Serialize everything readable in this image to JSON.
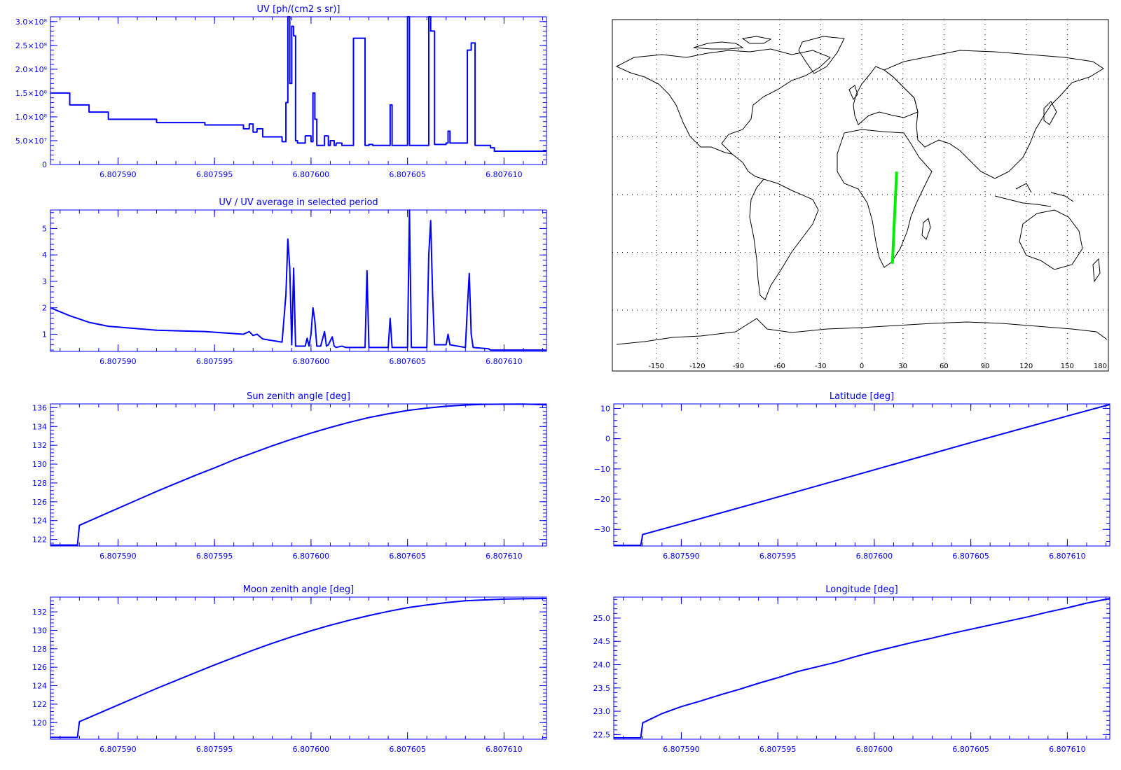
{
  "colors": {
    "plot": "#0000ff",
    "track": "#00ee00",
    "map_lines": "#000000"
  },
  "chart_data": [
    {
      "id": "uv",
      "type": "line",
      "title": "UV [ph/(cm2 s sr)]",
      "xlabel": "",
      "ylabel": "",
      "xlim": [
        6.8075865,
        6.8076122
      ],
      "ylim": [
        0,
        310000000
      ],
      "step": true,
      "x_tick_labels": [
        "6.807590",
        "6.807595",
        "6.807600",
        "6.807605",
        "6.807610"
      ],
      "x_ticks": [
        6.80759,
        6.807595,
        6.8076,
        6.807605,
        6.80761
      ],
      "y_tick_labels": [
        "0",
        "5.0×10⁷",
        "1.0×10⁸",
        "1.5×10⁸",
        "2.0×10⁸",
        "2.5×10⁸",
        "3.0×10⁸"
      ],
      "y_ticks": [
        0,
        50000000,
        100000000,
        150000000,
        200000000,
        250000000,
        300000000
      ],
      "series": [
        {
          "x": [
            6.8075865,
            6.8075875,
            6.8075885,
            6.8075895,
            6.807592,
            6.8075945,
            6.8075965,
            6.8075968,
            6.807597,
            6.8075972,
            6.8075975,
            6.8075985,
            6.8075987,
            6.8075988,
            6.8075989,
            6.807599,
            6.8075991,
            6.8075992,
            6.8075993,
            6.8075994,
            6.8075997,
            6.8076,
            6.8076001,
            6.8076002,
            6.8076003,
            6.8076005,
            6.8076007,
            6.8076009,
            6.807601,
            6.8076012,
            6.8076013,
            6.8076016,
            6.8076018,
            6.807602,
            6.8076022,
            6.8076028,
            6.807603,
            6.8076032,
            6.8076041,
            6.8076042,
            6.8076044,
            6.807605,
            6.8076051,
            6.8076052,
            6.8076061,
            6.8076062,
            6.8076064,
            6.807607,
            6.8076071,
            6.8076072,
            6.8076073,
            6.807608,
            6.8076081,
            6.8076083,
            6.8076085,
            6.8076092,
            6.8076093,
            6.8076095,
            6.8076122
          ],
          "y": [
            150000000,
            125000000,
            110000000,
            95000000,
            88000000,
            83000000,
            75000000,
            85000000,
            68000000,
            75000000,
            58000000,
            48000000,
            130000000,
            310000000,
            170000000,
            290000000,
            270000000,
            50000000,
            45000000,
            45000000,
            60000000,
            48000000,
            150000000,
            95000000,
            40000000,
            40000000,
            60000000,
            40000000,
            50000000,
            40000000,
            45000000,
            40000000,
            40000000,
            40000000,
            265000000,
            40000000,
            42000000,
            40000000,
            125000000,
            40000000,
            40000000,
            310000000,
            40000000,
            40000000,
            310000000,
            280000000,
            42000000,
            45000000,
            70000000,
            45000000,
            45000000,
            45000000,
            240000000,
            255000000,
            40000000,
            40000000,
            35000000,
            28000000,
            28000000
          ]
        }
      ]
    },
    {
      "id": "uv-ratio",
      "type": "line",
      "title": "UV / UV average in selected period",
      "xlabel": "",
      "ylabel": "",
      "xlim": [
        6.8075865,
        6.8076122
      ],
      "ylim": [
        0.35,
        5.7
      ],
      "x_tick_labels": [
        "6.807590",
        "6.807595",
        "6.807600",
        "6.807605",
        "6.807610"
      ],
      "x_ticks": [
        6.80759,
        6.807595,
        6.8076,
        6.807605,
        6.80761
      ],
      "y_tick_labels": [
        "1",
        "2",
        "3",
        "4",
        "5"
      ],
      "y_ticks": [
        1,
        2,
        3,
        4,
        5
      ],
      "series": [
        {
          "x": [
            6.8075865,
            6.8075875,
            6.8075885,
            6.8075895,
            6.807592,
            6.8075945,
            6.8075965,
            6.8075968,
            6.807597,
            6.8075972,
            6.8075975,
            6.8075985,
            6.8075987,
            6.8075988,
            6.8075989,
            6.807599,
            6.8075991,
            6.8075992,
            6.8075993,
            6.8075997,
            6.8075998,
            6.8075999,
            6.8076,
            6.8076001,
            6.8076002,
            6.8076003,
            6.8076005,
            6.8076007,
            6.8076008,
            6.8076009,
            6.8076011,
            6.8076012,
            6.8076013,
            6.8076016,
            6.8076018,
            6.807602,
            6.8076028,
            6.8076029,
            6.807603,
            6.8076032,
            6.807604,
            6.8076041,
            6.8076042,
            6.807605,
            6.8076051,
            6.8076052,
            6.807606,
            6.8076061,
            6.8076062,
            6.8076063,
            6.8076064,
            6.807607,
            6.8076071,
            6.8076072,
            6.807608,
            6.8076081,
            6.8076082,
            6.8076083,
            6.8076084,
            6.8076092,
            6.8076093,
            6.8076094,
            6.8076122
          ],
          "y": [
            2.0,
            1.7,
            1.45,
            1.3,
            1.15,
            1.1,
            1.0,
            1.1,
            0.95,
            1.0,
            0.82,
            0.7,
            2.5,
            4.6,
            3.5,
            0.6,
            3.5,
            0.55,
            0.55,
            0.55,
            0.85,
            0.55,
            1.0,
            2.0,
            1.5,
            0.55,
            0.55,
            1.1,
            0.55,
            0.6,
            0.9,
            0.55,
            0.5,
            0.55,
            0.5,
            0.5,
            0.5,
            3.4,
            0.5,
            0.5,
            0.5,
            1.6,
            0.5,
            0.5,
            5.7,
            0.5,
            0.5,
            4.0,
            5.3,
            2.5,
            0.6,
            0.6,
            1.0,
            0.6,
            0.5,
            2.0,
            3.3,
            1.0,
            0.5,
            0.45,
            0.4,
            0.4,
            0.4
          ]
        }
      ]
    },
    {
      "id": "sun-zenith",
      "type": "line",
      "title": "Sun zenith angle [deg]",
      "xlabel": "",
      "ylabel": "",
      "xlim": [
        6.8075865,
        6.8076122
      ],
      "ylim": [
        121.3,
        136.4
      ],
      "x_tick_labels": [
        "6.807590",
        "6.807595",
        "6.807600",
        "6.807605",
        "6.807610"
      ],
      "x_ticks": [
        6.80759,
        6.807595,
        6.8076,
        6.807605,
        6.80761
      ],
      "y_tick_labels": [
        "122",
        "124",
        "126",
        "128",
        "130",
        "132",
        "134",
        "136"
      ],
      "y_ticks": [
        122,
        124,
        126,
        128,
        130,
        132,
        134,
        136
      ],
      "series": [
        {
          "x": [
            6.8075865,
            6.8075879,
            6.807588,
            6.807589,
            6.80759,
            6.807591,
            6.807592,
            6.807593,
            6.807594,
            6.807595,
            6.807596,
            6.807597,
            6.807598,
            6.807599,
            6.8076,
            6.807601,
            6.807602,
            6.807603,
            6.807604,
            6.807605,
            6.807606,
            6.807607,
            6.807608,
            6.807609,
            6.80761,
            6.807611,
            6.8076122
          ],
          "y": [
            121.4,
            121.4,
            123.5,
            124.4,
            125.3,
            126.2,
            127.1,
            127.95,
            128.8,
            129.6,
            130.45,
            131.2,
            131.95,
            132.65,
            133.3,
            133.9,
            134.45,
            134.95,
            135.35,
            135.7,
            135.95,
            136.15,
            136.28,
            136.35,
            136.37,
            136.38,
            136.3
          ]
        }
      ]
    },
    {
      "id": "latitude",
      "type": "line",
      "title": "Latitude [deg]",
      "xlabel": "",
      "ylabel": "",
      "xlim": [
        6.8075865,
        6.8076122
      ],
      "ylim": [
        -35.5,
        11.5
      ],
      "x_tick_labels": [
        "6.807590",
        "6.807595",
        "6.807600",
        "6.807605",
        "6.807610"
      ],
      "x_ticks": [
        6.80759,
        6.807595,
        6.8076,
        6.807605,
        6.80761
      ],
      "y_tick_labels": [
        "−30",
        "−20",
        "−10",
        "0",
        "10"
      ],
      "y_ticks": [
        -30,
        -20,
        -10,
        0,
        10
      ],
      "series": [
        {
          "x": [
            6.8075865,
            6.8075879,
            6.807588,
            6.80759,
            6.807595,
            6.8076,
            6.807605,
            6.80761,
            6.8076122
          ],
          "y": [
            -35.3,
            -35.3,
            -31.7,
            -28.2,
            -19.3,
            -10.3,
            -1.3,
            7.5,
            11.3
          ]
        }
      ]
    },
    {
      "id": "moon-zenith",
      "type": "line",
      "title": "Moon zenith angle [deg]",
      "xlabel": "",
      "ylabel": "",
      "xlim": [
        6.8075865,
        6.8076122
      ],
      "ylim": [
        118.2,
        133.6
      ],
      "x_tick_labels": [
        "6.807590",
        "6.807595",
        "6.807600",
        "6.807605",
        "6.807610"
      ],
      "x_ticks": [
        6.80759,
        6.807595,
        6.8076,
        6.807605,
        6.80761
      ],
      "y_tick_labels": [
        "120",
        "122",
        "124",
        "126",
        "128",
        "130",
        "132"
      ],
      "y_ticks": [
        120,
        122,
        124,
        126,
        128,
        130,
        132
      ],
      "series": [
        {
          "x": [
            6.8075865,
            6.8075879,
            6.807588,
            6.807589,
            6.80759,
            6.807591,
            6.807592,
            6.807593,
            6.807594,
            6.807595,
            6.807596,
            6.807597,
            6.807598,
            6.807599,
            6.8076,
            6.807601,
            6.807602,
            6.807603,
            6.807604,
            6.807605,
            6.807606,
            6.807607,
            6.807608,
            6.807609,
            6.80761,
            6.807611,
            6.8076122
          ],
          "y": [
            118.4,
            118.4,
            120.1,
            121.0,
            121.9,
            122.8,
            123.7,
            124.55,
            125.4,
            126.25,
            127.05,
            127.85,
            128.6,
            129.3,
            129.95,
            130.55,
            131.1,
            131.6,
            132.05,
            132.45,
            132.75,
            133.0,
            133.2,
            133.3,
            133.38,
            133.42,
            133.45
          ]
        }
      ]
    },
    {
      "id": "longitude",
      "type": "line",
      "title": "Longitude [deg]",
      "xlabel": "",
      "ylabel": "",
      "xlim": [
        6.8075865,
        6.8076122
      ],
      "ylim": [
        22.4,
        25.45
      ],
      "x_tick_labels": [
        "6.807590",
        "6.807595",
        "6.807600",
        "6.807605",
        "6.807610"
      ],
      "x_ticks": [
        6.80759,
        6.807595,
        6.8076,
        6.807605,
        6.80761
      ],
      "y_tick_labels": [
        "22.5",
        "23.0",
        "23.5",
        "24.0",
        "24.5",
        "25.0"
      ],
      "y_ticks": [
        22.5,
        23.0,
        23.5,
        24.0,
        24.5,
        25.0
      ],
      "series": [
        {
          "x": [
            6.8075865,
            6.8075879,
            6.807588,
            6.807589,
            6.80759,
            6.807591,
            6.807592,
            6.807593,
            6.807594,
            6.807595,
            6.807596,
            6.807597,
            6.807598,
            6.807599,
            6.8076,
            6.807601,
            6.807602,
            6.807603,
            6.807604,
            6.807605,
            6.807606,
            6.807607,
            6.807608,
            6.807609,
            6.80761,
            6.807611,
            6.8076122
          ],
          "y": [
            22.43,
            22.43,
            22.75,
            22.95,
            23.1,
            23.22,
            23.35,
            23.47,
            23.6,
            23.72,
            23.85,
            23.95,
            24.05,
            24.17,
            24.28,
            24.38,
            24.48,
            24.57,
            24.67,
            24.76,
            24.85,
            24.94,
            25.03,
            25.13,
            25.22,
            25.32,
            25.42
          ]
        }
      ]
    }
  ],
  "map": {
    "lon_tick_labels": [
      "-150",
      "-120",
      "-90",
      "-60",
      "-30",
      "0",
      "30",
      "60",
      "90",
      "120",
      "150",
      "180"
    ],
    "lon_ticks": [
      -150,
      -120,
      -90,
      -60,
      -30,
      0,
      30,
      60,
      90,
      120,
      150,
      180
    ],
    "lat_grid": [
      -60,
      -30,
      0,
      30,
      60
    ],
    "track": {
      "lon": [
        22.4,
        25.4
      ],
      "lat": [
        -35.3,
        11.3
      ]
    }
  }
}
